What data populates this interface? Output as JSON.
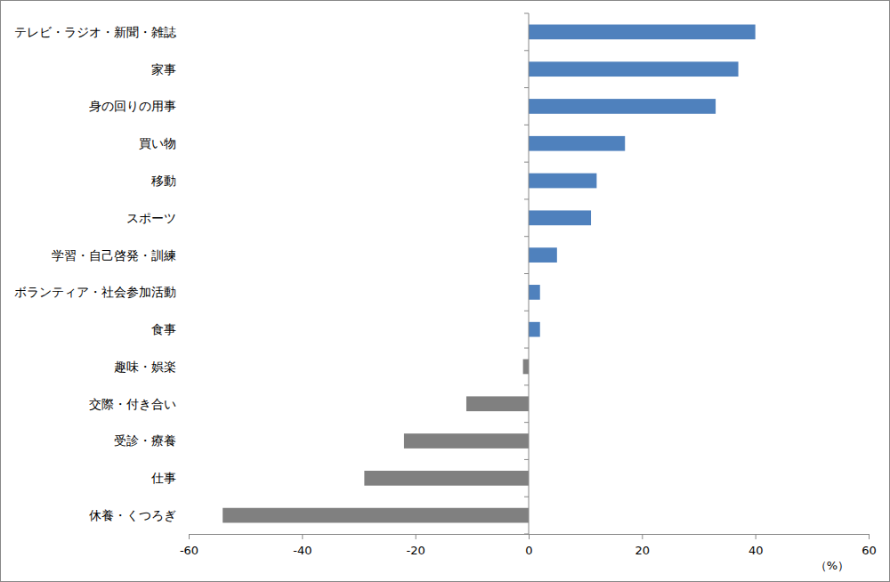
{
  "chart_data": {
    "type": "bar",
    "orientation": "horizontal",
    "xlabel": "（%）",
    "categories": [
      "テレビ・ラジオ・新聞・雑誌",
      "家事",
      "身の回りの用事",
      "買い物",
      "移動",
      "スポーツ",
      "学習・自己啓発・訓練",
      "ボランティア・社会参加活動",
      "食事",
      "趣味・娯楽",
      "交際・付き合い",
      "受診・療養",
      "仕事",
      "休養・くつろぎ"
    ],
    "values": [
      40,
      37,
      33,
      17,
      12,
      11,
      5,
      2,
      2,
      -1,
      -11,
      -22,
      -29,
      -54
    ],
    "colors": [
      "#4f81bd",
      "#4f81bd",
      "#4f81bd",
      "#4f81bd",
      "#4f81bd",
      "#4f81bd",
      "#4f81bd",
      "#4f81bd",
      "#4f81bd",
      "#808080",
      "#808080",
      "#808080",
      "#808080",
      "#808080"
    ],
    "xlim": [
      -60,
      60
    ],
    "xticks": [
      -60,
      -40,
      -20,
      0,
      20,
      40,
      60
    ],
    "grid": false
  }
}
